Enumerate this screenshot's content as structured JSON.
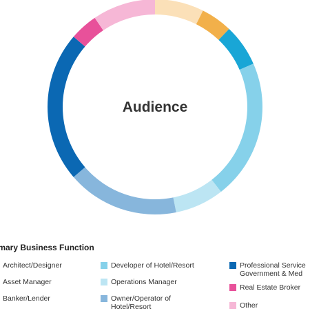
{
  "chart_data": {
    "type": "pie",
    "title": "Audience",
    "slices": [
      {
        "label": "Other",
        "value": 7,
        "color": "#fbe0b8"
      },
      {
        "label": "",
        "value": 4.5,
        "color": "#f2b04a"
      },
      {
        "label": "",
        "value": 6,
        "color": "#19a6d6"
      },
      {
        "label": "Developer of Hotel/Resort",
        "value": 20,
        "color": "#86d1ea"
      },
      {
        "label": "Operations Manager",
        "value": 7,
        "color": "#bce5f3"
      },
      {
        "label": "Owner/Operator of Hotel/Resort",
        "value": 16,
        "color": "#87b6dc"
      },
      {
        "label": "Professional Services, Government & Media",
        "value": 21.5,
        "color": "#0b68b3"
      },
      {
        "label": "Real Estate Broker",
        "value": 4,
        "color": "#e8519a"
      },
      {
        "label": "Other",
        "value": 9,
        "color": "#f6b7d6"
      }
    ]
  },
  "legend": {
    "title": "imary Business Function",
    "items": [
      {
        "label": "Architect/Designer",
        "color": null
      },
      {
        "label": "Asset Manager",
        "color": null
      },
      {
        "label": "Banker/Lender",
        "color": null
      },
      {
        "label": "Developer of Hotel/Resort",
        "color": "#86d1ea"
      },
      {
        "label": "Operations Manager",
        "color": "#bce5f3"
      },
      {
        "label": "Owner/Operator of",
        "label2": "Hotel/Resort",
        "color": "#87b6dc"
      },
      {
        "label": "Professional Service",
        "label2": "Government & Med",
        "color": "#0b68b3"
      },
      {
        "label": "Real Estate Broker",
        "color": "#e8519a"
      },
      {
        "label": "Other",
        "color": "#f6b7d6"
      }
    ]
  }
}
